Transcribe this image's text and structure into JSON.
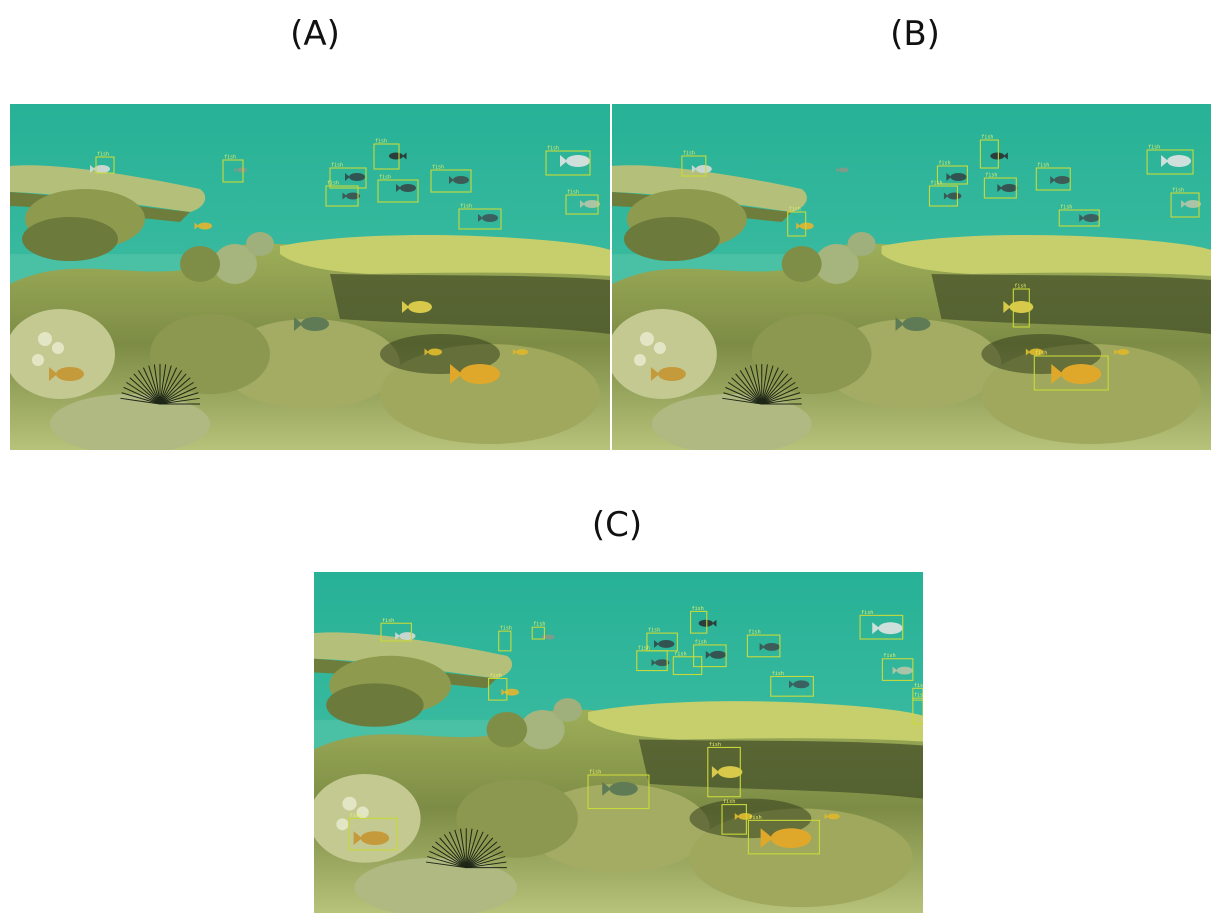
{
  "panels": [
    {
      "id": "A",
      "label": "(A)",
      "detection_count": 10
    },
    {
      "id": "B",
      "label": "(B)",
      "detection_count": 12
    },
    {
      "id": "C",
      "label": "(C)",
      "detection_count": 20
    }
  ],
  "detection_class": "fish",
  "colors": {
    "box": "#c9d93a",
    "water": "#2fb39a",
    "reef": "#a9b85a"
  }
}
